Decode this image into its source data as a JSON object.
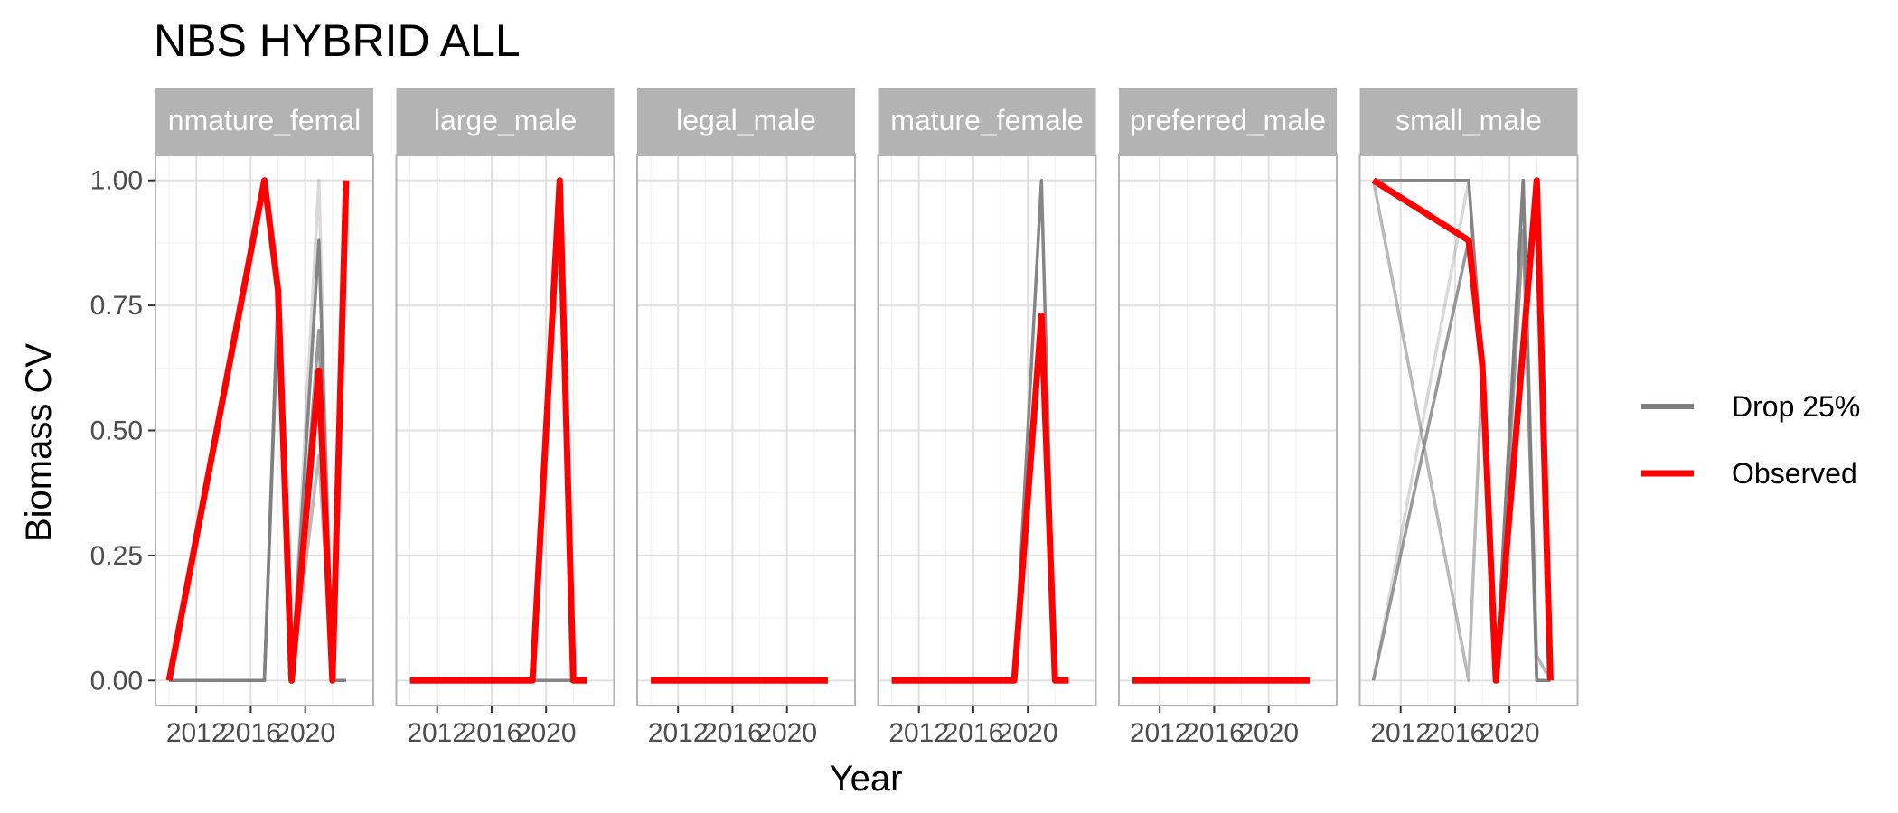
{
  "chart_data": {
    "type": "line",
    "title": "NBS HYBRID ALL",
    "xlabel": "Year",
    "ylabel": "Biomass CV",
    "xlim": [
      2009,
      2025
    ],
    "ylim": [
      -0.05,
      1.05
    ],
    "x_ticks": [
      2012,
      2016,
      2020
    ],
    "x_tick_labels": [
      "2012",
      "2016",
      "2020"
    ],
    "y_ticks": [
      0,
      0.25,
      0.5,
      0.75,
      1.0
    ],
    "y_tick_labels": [
      "0.00",
      "0.25",
      "0.50",
      "0.75",
      "1.00"
    ],
    "grid": true,
    "legend": {
      "position": "right",
      "entries": [
        {
          "label": "Drop 25%",
          "color": "#808080"
        },
        {
          "label": "Observed",
          "color": "#ff0000"
        }
      ]
    },
    "colors": {
      "drop": "#808080",
      "observed": "#ff0000",
      "strip": "#b3b3b3"
    },
    "panels": [
      {
        "strip": "immature_female",
        "strip_shown": "nmature_femal",
        "drop_series": [
          {
            "x": [
              2010,
              2017,
              2018,
              2019,
              2021,
              2022,
              2023
            ],
            "y": [
              0,
              0,
              0.78,
              0,
              0.88,
              0,
              0
            ]
          },
          {
            "x": [
              2010,
              2017,
              2018,
              2019,
              2021,
              2022,
              2023
            ],
            "y": [
              0,
              0,
              0.76,
              0,
              1.0,
              0,
              0
            ]
          },
          {
            "x": [
              2010,
              2017,
              2018,
              2019,
              2021,
              2022,
              2023
            ],
            "y": [
              0,
              0,
              0.74,
              0,
              0.7,
              0,
              0
            ]
          },
          {
            "x": [
              2010,
              2017,
              2018,
              2019,
              2021,
              2022,
              2023
            ],
            "y": [
              0,
              0,
              0.75,
              0,
              0.45,
              0,
              0
            ]
          }
        ],
        "observed": {
          "x": [
            2010,
            2017,
            2018,
            2019,
            2021,
            2022,
            2023
          ],
          "y": [
            0,
            1.0,
            0.78,
            0,
            0.62,
            0,
            1.0
          ]
        }
      },
      {
        "strip": "large_male",
        "strip_shown": "large_male",
        "drop_series": [
          {
            "x": [
              2010,
              2019,
              2021,
              2022,
              2023
            ],
            "y": [
              0,
              0,
              0,
              0,
              0
            ]
          }
        ],
        "observed": {
          "x": [
            2010,
            2019,
            2021,
            2022,
            2023
          ],
          "y": [
            0,
            0,
            1.0,
            0,
            0
          ]
        }
      },
      {
        "strip": "legal_male",
        "strip_shown": "legal_male",
        "drop_series": [
          {
            "x": [
              2010,
              2023
            ],
            "y": [
              0,
              0
            ]
          }
        ],
        "observed": {
          "x": [
            2010,
            2023
          ],
          "y": [
            0,
            0
          ]
        }
      },
      {
        "strip": "mature_female",
        "strip_shown": "mature_female",
        "drop_series": [
          {
            "x": [
              2010,
              2019,
              2021,
              2022,
              2023
            ],
            "y": [
              0,
              0,
              1.0,
              0,
              0
            ]
          }
        ],
        "observed": {
          "x": [
            2010,
            2019,
            2021,
            2022,
            2023
          ],
          "y": [
            0,
            0,
            0.73,
            0,
            0
          ]
        }
      },
      {
        "strip": "preferred_male",
        "strip_shown": "preferred_male",
        "drop_series": [
          {
            "x": [
              2010,
              2023
            ],
            "y": [
              0,
              0
            ]
          }
        ],
        "observed": {
          "x": [
            2010,
            2023
          ],
          "y": [
            0,
            0
          ]
        }
      },
      {
        "strip": "small_male",
        "strip_shown": "small_male",
        "drop_series": [
          {
            "x": [
              2010,
              2017,
              2018,
              2019,
              2021,
              2022,
              2023
            ],
            "y": [
              1.0,
              1.0,
              0.63,
              0,
              1.0,
              0,
              0
            ]
          },
          {
            "x": [
              2010,
              2017,
              2018,
              2019,
              2021,
              2022,
              2023
            ],
            "y": [
              0,
              1.0,
              0.63,
              0,
              1.0,
              0,
              0
            ]
          },
          {
            "x": [
              2010,
              2017,
              2018,
              2019,
              2021,
              2022,
              2023
            ],
            "y": [
              0,
              0.88,
              0.63,
              0,
              0.9,
              0,
              0
            ]
          },
          {
            "x": [
              2010,
              2017,
              2018,
              2019,
              2021,
              2022,
              2023
            ],
            "y": [
              1.0,
              0,
              0.63,
              0,
              1.0,
              0.05,
              0
            ]
          }
        ],
        "observed": {
          "x": [
            2010,
            2017,
            2018,
            2019,
            2022,
            2023
          ],
          "y": [
            1.0,
            0.88,
            0.63,
            0,
            1.0,
            0
          ]
        }
      }
    ]
  }
}
